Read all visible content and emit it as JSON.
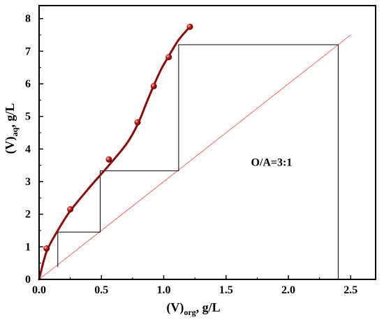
{
  "chart_data": {
    "type": "scatter",
    "xlabel": {
      "main": "(V)",
      "sub": "org",
      "suffix": ", g/L"
    },
    "ylabel": {
      "main": "(V)",
      "sub": "aq",
      "suffix": ", g/L"
    },
    "xlim": [
      0,
      2.7
    ],
    "ylim": [
      0,
      8.4
    ],
    "xticks": [
      {
        "value": 0,
        "label": "0.0"
      },
      {
        "value": 0.5,
        "label": "0.5"
      },
      {
        "value": 1.0,
        "label": "1.0"
      },
      {
        "value": 1.5,
        "label": "1.5"
      },
      {
        "value": 2.0,
        "label": "2.0"
      },
      {
        "value": 2.5,
        "label": "2.5"
      }
    ],
    "yticks": [
      {
        "value": 0,
        "label": "0"
      },
      {
        "value": 1,
        "label": "1"
      },
      {
        "value": 2,
        "label": "2"
      },
      {
        "value": 3,
        "label": "3"
      },
      {
        "value": 4,
        "label": "4"
      },
      {
        "value": 5,
        "label": "5"
      },
      {
        "value": 6,
        "label": "6"
      },
      {
        "value": 7,
        "label": "7"
      },
      {
        "value": 8,
        "label": "8"
      }
    ],
    "grid": false,
    "series": [
      {
        "kind": "points-with-smooth-curve",
        "color": "#8b0a0a",
        "x": [
          0.06,
          0.25,
          0.56,
          0.79,
          0.92,
          1.04,
          1.21
        ],
        "y": [
          0.95,
          2.15,
          3.68,
          4.82,
          5.93,
          6.82,
          7.75
        ],
        "curve_x": [
          0.0,
          0.06,
          0.15,
          0.25,
          0.4,
          0.56,
          0.7,
          0.79,
          0.86,
          0.92,
          0.98,
          1.04,
          1.12,
          1.21
        ],
        "curve_y": [
          0.0,
          0.85,
          1.5,
          2.1,
          2.8,
          3.5,
          4.15,
          4.75,
          5.4,
          5.95,
          6.45,
          6.85,
          7.35,
          7.75
        ]
      },
      {
        "kind": "operating-line",
        "color": "#f06a6a",
        "x": [
          0.0,
          2.5
        ],
        "y": [
          0.0,
          7.5
        ]
      },
      {
        "kind": "mccabe-thiele-steps",
        "color": "#000000",
        "x": [
          2.4,
          2.4,
          1.12,
          1.12,
          0.49,
          0.49,
          0.15,
          0.15
        ],
        "y": [
          0.0,
          7.2,
          7.2,
          3.33,
          3.33,
          1.45,
          1.45,
          0.38
        ]
      }
    ],
    "annotations": [
      {
        "text": "O/A=3:1",
        "x": 1.7,
        "y": 3.48
      }
    ]
  }
}
